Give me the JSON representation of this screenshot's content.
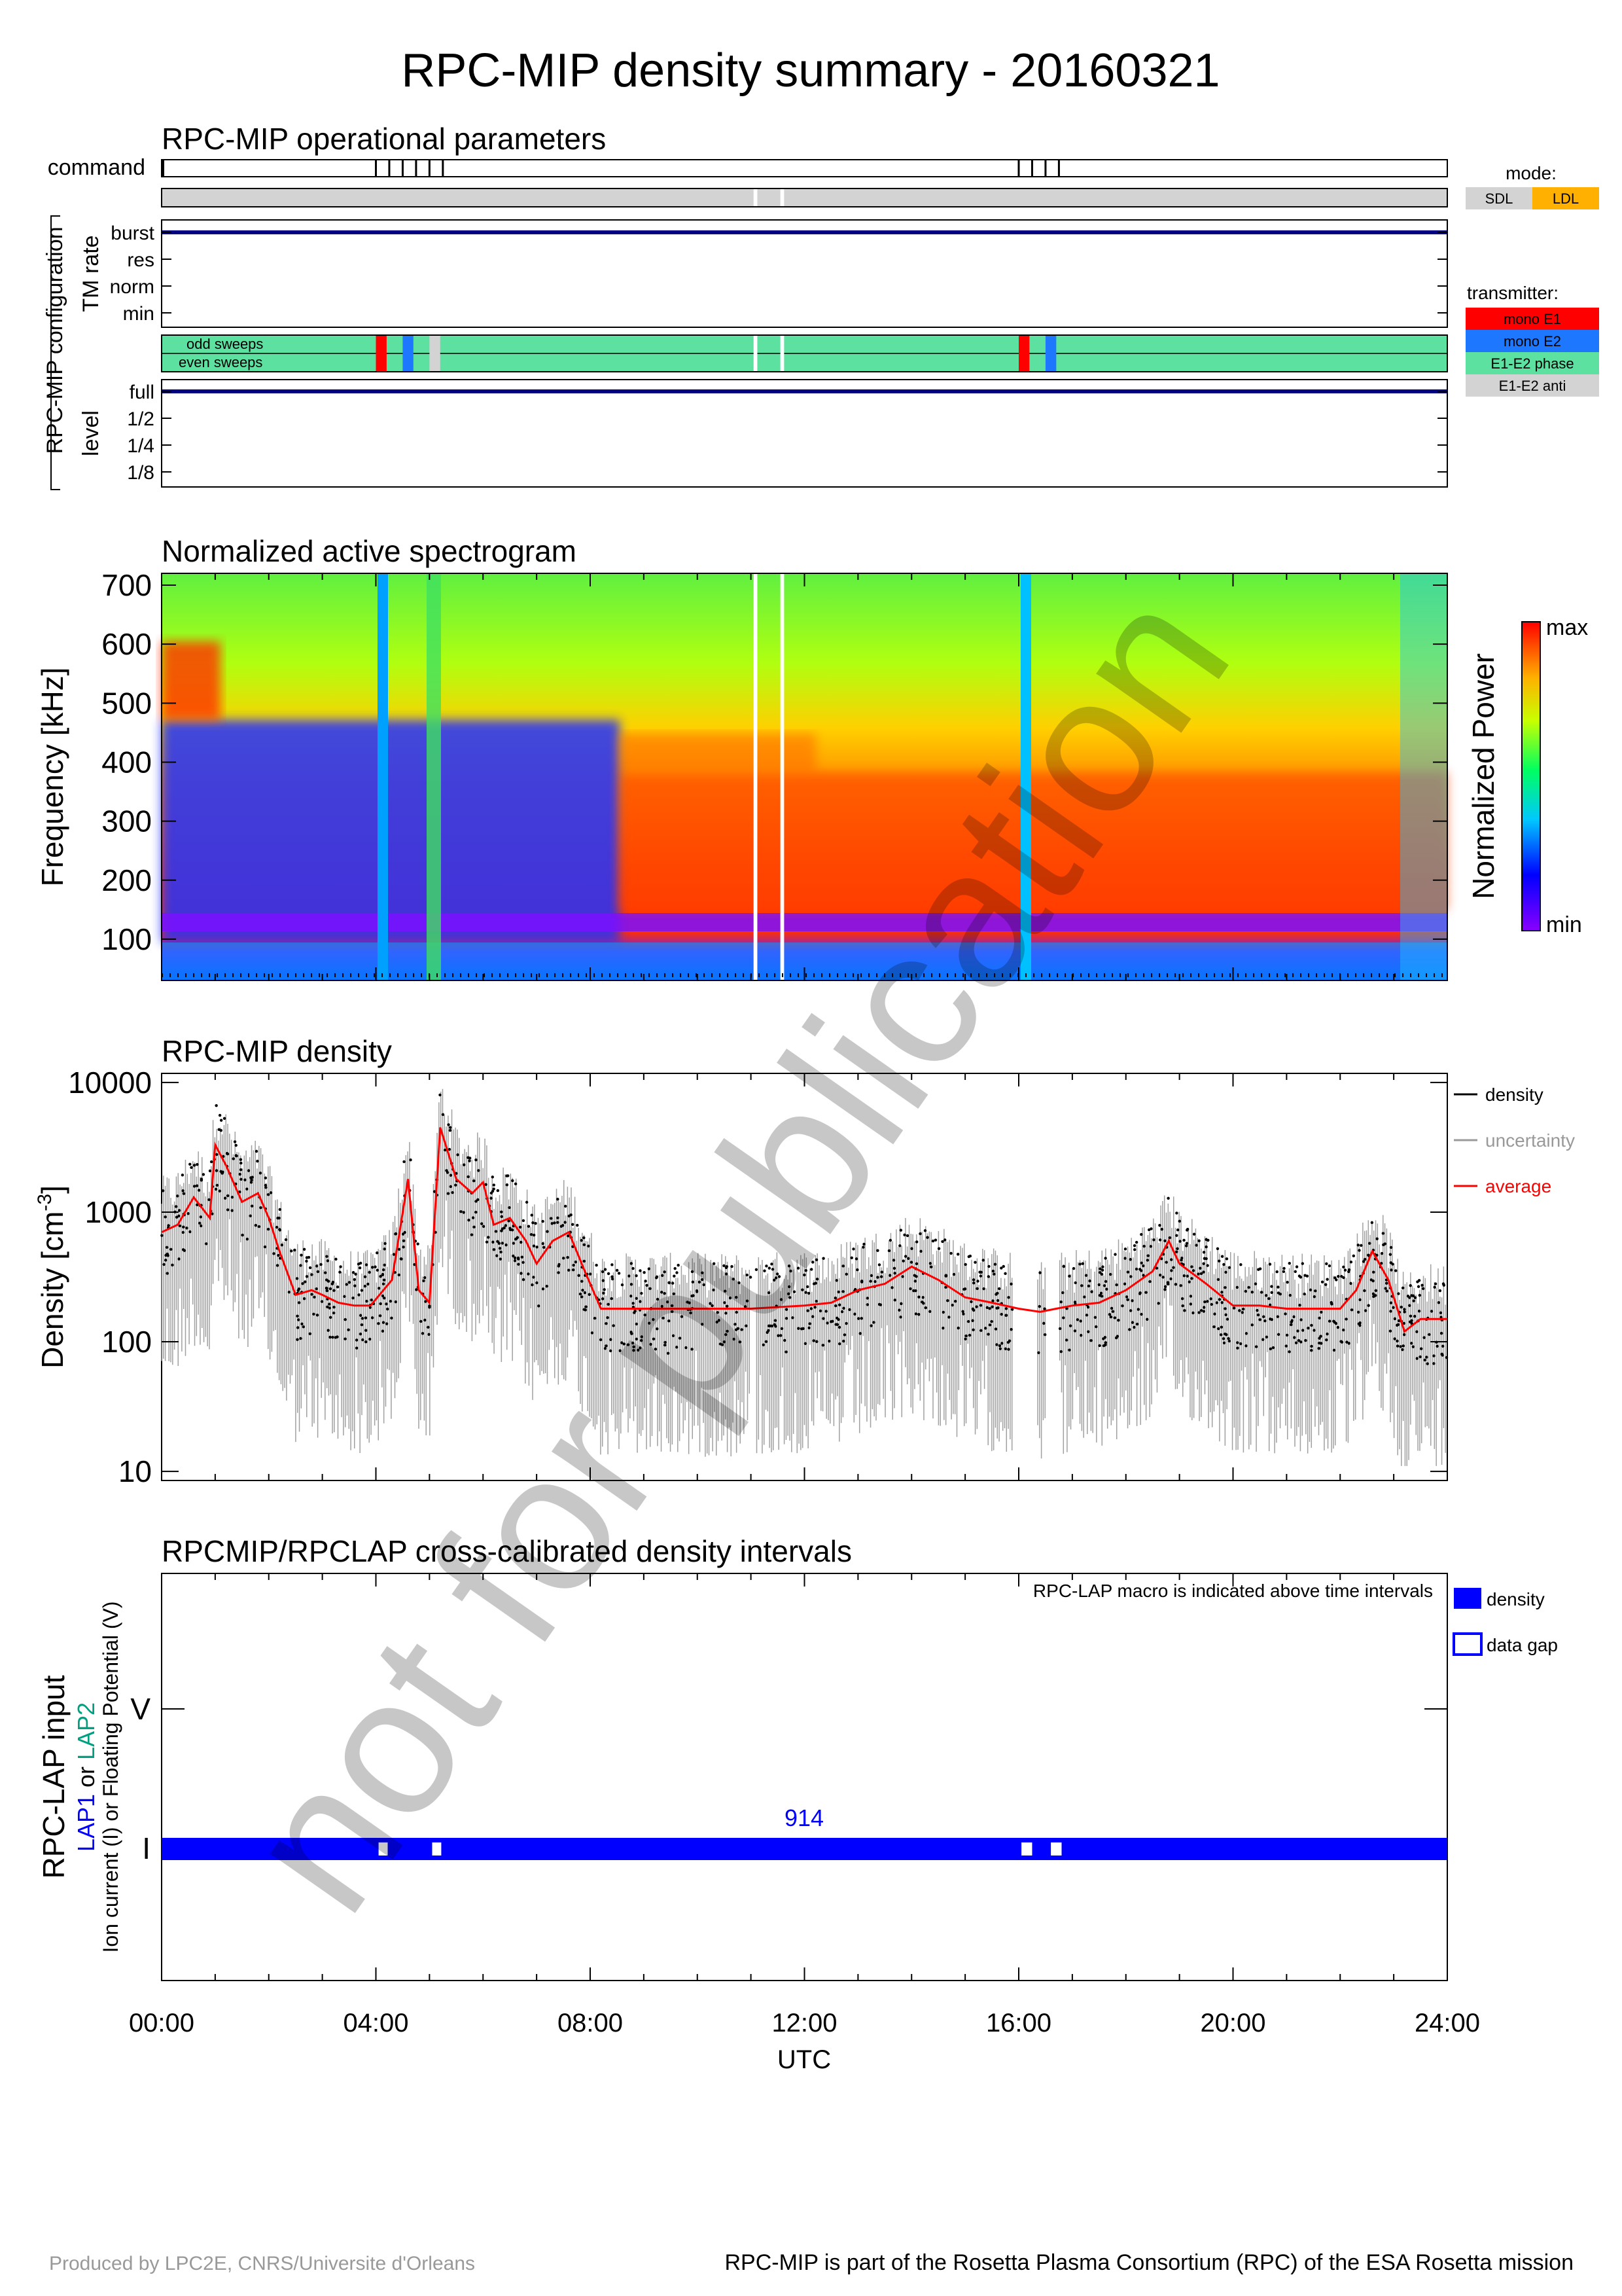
{
  "page": {
    "title": "RPC-MIP density summary - 20160321",
    "footer_left": "Produced by LPC2E, CNRS/Universite d'Orleans",
    "footer_right": "RPC-MIP is part of the Rosetta Plasma Consortium (RPC) of the ESA Rosetta mission",
    "watermark": "not for publication"
  },
  "colors": {
    "navy": "#000080",
    "sdl": "#d3d3d3",
    "ldl": "#ffb000",
    "mono_e1": "#ff0000",
    "mono_e2": "#1e78ff",
    "e1e2_phase": "#5ce1a0",
    "e1e2_anti": "#d3d3d3",
    "density": "#000000",
    "uncertainty": "#999999",
    "average": "#ff0000",
    "lap_density": "#0000ff"
  },
  "ops": {
    "title": "RPC-MIP operational parameters",
    "command_label": "command",
    "group_label": "RPC-MIP configuration",
    "tm_rate_label": "TM rate",
    "tm_levels": [
      "burst",
      "res",
      "norm",
      "min"
    ],
    "tm_rate_value": "burst",
    "odd_label": "odd sweeps",
    "even_label": "even sweeps",
    "level_label": "level",
    "level_levels": [
      "full",
      "1/2",
      "1/4",
      "1/8"
    ],
    "level_value": "full",
    "commands_hours": [
      4.0,
      4.25,
      4.5,
      4.75,
      5.0,
      5.25,
      16.0,
      16.25,
      16.5,
      16.75
    ],
    "mode_gaps_hours": [
      [
        11.05,
        11.12
      ],
      [
        11.55,
        11.62
      ]
    ],
    "transmitter_segments": [
      {
        "start": 4.0,
        "end": 4.2,
        "type": "mono_e1"
      },
      {
        "start": 4.5,
        "end": 4.7,
        "type": "mono_e2"
      },
      {
        "start": 5.0,
        "end": 5.2,
        "type": "e1e2_anti"
      },
      {
        "start": 11.05,
        "end": 11.12,
        "type": "gap"
      },
      {
        "start": 11.55,
        "end": 11.62,
        "type": "gap"
      },
      {
        "start": 16.0,
        "end": 16.2,
        "type": "mono_e1"
      },
      {
        "start": 16.5,
        "end": 16.7,
        "type": "mono_e2"
      }
    ],
    "mode_legend": {
      "title": "mode:",
      "items": [
        "SDL",
        "LDL"
      ]
    },
    "transmitter_legend": {
      "title": "transmitter:",
      "items": [
        "mono E1",
        "mono E2",
        "E1-E2 phase",
        "E1-E2 anti"
      ]
    }
  },
  "spectrogram": {
    "title": "Normalized active spectrogram",
    "ylabel": "Frequency [kHz]",
    "yticks": [
      "700",
      "600",
      "500",
      "400",
      "300",
      "200",
      "100"
    ],
    "colorbar_label": "Normalized Power",
    "colorbar_max": "max",
    "colorbar_min": "min"
  },
  "density_panel": {
    "title": "RPC-MIP density",
    "ylabel": "Density [cm",
    "ylabel_sup": "-3",
    "ylabel_end": "]",
    "yticks": [
      "10000",
      "1000",
      "100",
      "10"
    ],
    "legend": [
      "density",
      "uncertainty",
      "average"
    ]
  },
  "lap_panel": {
    "title": "RPCMIP/RPCLAP cross-calibrated density intervals",
    "note": "RPC-LAP macro is indicated above time intervals",
    "ylabel1": "RPC-LAP input",
    "ylabel2_a": "LAP1",
    "ylabel2_b": " or ",
    "ylabel2_c": "LAP2",
    "ylabel3": "Ion current (I) or Floating Potential (V)",
    "ytick_v": "V",
    "ytick_i": "I",
    "macro": "914",
    "legend": [
      "density",
      "data gap"
    ],
    "gaps_hours": [
      [
        4.05,
        4.22
      ],
      [
        5.05,
        5.22
      ],
      [
        16.05,
        16.25
      ],
      [
        16.6,
        16.8
      ]
    ]
  },
  "xaxis": {
    "ticks": [
      "00:00",
      "04:00",
      "08:00",
      "12:00",
      "16:00",
      "20:00",
      "24:00"
    ],
    "label": "UTC"
  },
  "chart_data": {
    "type": "line",
    "title": "RPC-MIP density",
    "xlabel": "UTC",
    "ylabel": "Density [cm-3]",
    "x_unit": "hours UTC",
    "yscale": "log",
    "ylim": [
      10,
      10000
    ],
    "xlim": [
      0,
      24
    ],
    "series": [
      {
        "name": "average",
        "x": [
          0.0,
          0.3,
          0.6,
          0.9,
          1.0,
          1.2,
          1.5,
          1.8,
          2.0,
          2.2,
          2.5,
          2.8,
          3.0,
          3.3,
          3.6,
          3.9,
          4.3,
          4.6,
          4.8,
          5.0,
          5.2,
          5.5,
          5.8,
          6.0,
          6.2,
          6.5,
          6.8,
          7.0,
          7.3,
          7.6,
          7.9,
          8.2,
          8.5,
          9.0,
          10.0,
          11.0,
          12.0,
          12.5,
          13.0,
          13.5,
          14.0,
          14.5,
          15.0,
          15.5,
          16.0,
          16.4,
          16.7,
          17.0,
          17.5,
          18.0,
          18.5,
          18.8,
          19.0,
          19.5,
          20.0,
          20.5,
          21.0,
          21.5,
          22.0,
          22.3,
          22.6,
          22.9,
          23.2,
          23.5,
          24.0
        ],
        "y": [
          700,
          800,
          1300,
          900,
          3300,
          2300,
          1200,
          1400,
          900,
          500,
          230,
          250,
          230,
          200,
          190,
          190,
          300,
          1800,
          250,
          200,
          4500,
          1800,
          1400,
          1700,
          800,
          900,
          600,
          400,
          600,
          700,
          350,
          180,
          180,
          180,
          180,
          180,
          190,
          200,
          250,
          280,
          380,
          300,
          220,
          200,
          180,
          170,
          180,
          190,
          200,
          250,
          350,
          600,
          400,
          280,
          190,
          190,
          180,
          180,
          180,
          250,
          500,
          300,
          120,
          150,
          150
        ]
      }
    ]
  }
}
